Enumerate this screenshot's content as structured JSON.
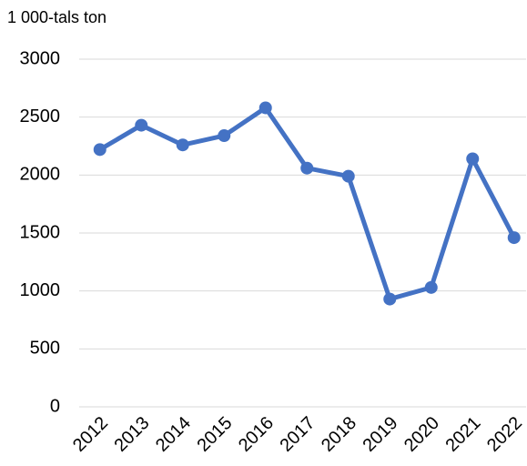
{
  "chart_data": {
    "type": "line",
    "y_label": "1 000-tals ton",
    "categories": [
      "2012",
      "2013",
      "2014",
      "2015",
      "2016",
      "2017",
      "2018",
      "2019",
      "2020",
      "2021",
      "2022"
    ],
    "series": [
      {
        "name": "1 000-tals ton",
        "color": "#4472c4",
        "values": [
          2220,
          2430,
          2260,
          2340,
          2580,
          2060,
          1990,
          930,
          1030,
          2140,
          1460
        ]
      }
    ],
    "ylim": [
      0,
      3000
    ],
    "yticks": [
      0,
      500,
      1000,
      1500,
      2000,
      2500,
      3000
    ],
    "grid": true
  }
}
